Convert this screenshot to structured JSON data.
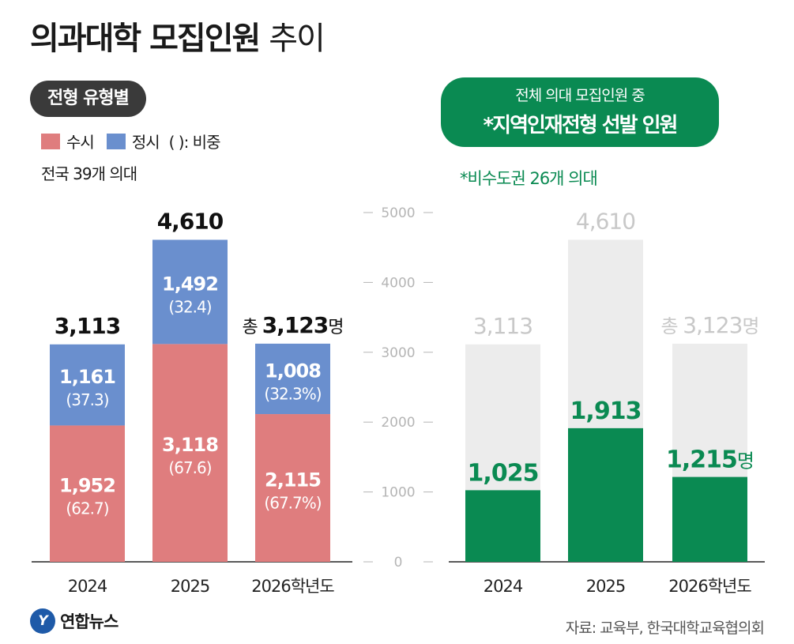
{
  "header": {
    "title_bold": "의과대학 모집인원",
    "title_light": "추이"
  },
  "left": {
    "pill": "전형 유형별",
    "legend": {
      "susi": "수시",
      "jeongsi": "정시",
      "note": "( ): 비중"
    },
    "subtitle": "전국 39개 의대"
  },
  "right": {
    "pill_line1": "전체 의대 모집인원 중",
    "pill_line2": "*지역인재전형 선발 인원",
    "subtitle": "*비수도권 26개 의대"
  },
  "footer": {
    "logo": "연합뉴스",
    "logo_mark": "Y",
    "source": "자료: 교육부, 한국대학교육협의회"
  },
  "colors": {
    "susi": "#df7d7e",
    "jeongsi": "#6a8fce",
    "green": "#0a8a52",
    "gray": "#ececec",
    "axis": "#b5b5b5",
    "grayText": "#c8c8c8"
  },
  "chart_data": [
    {
      "type": "bar",
      "stacked": true,
      "categories": [
        "2024",
        "2025",
        "2026학년도"
      ],
      "series": [
        {
          "name": "수시",
          "values": [
            1952,
            3118,
            2115
          ],
          "share_labels": [
            "(62.7)",
            "(67.6)",
            "(67.7%)"
          ],
          "value_labels": [
            "1,952",
            "3,118",
            "2,115"
          ]
        },
        {
          "name": "정시",
          "values": [
            1161,
            1492,
            1008
          ],
          "share_labels": [
            "(37.3)",
            "(32.4)",
            "(32.3%)"
          ],
          "value_labels": [
            "1,161",
            "1,492",
            "1,008"
          ]
        }
      ],
      "total_labels": [
        {
          "prefix": "",
          "value": "3,113",
          "suffix": ""
        },
        {
          "prefix": "",
          "value": "4,610",
          "suffix": ""
        },
        {
          "prefix": "총 ",
          "value": "3,123",
          "suffix": "명"
        }
      ],
      "ylim": [
        0,
        5000
      ]
    },
    {
      "type": "bar",
      "categories": [
        "2024",
        "2025",
        "2026학년도"
      ],
      "yticks": [
        0,
        1000,
        2000,
        3000,
        4000,
        5000
      ],
      "ylim": [
        0,
        5000
      ],
      "totals": [
        3113,
        4610,
        3123
      ],
      "total_labels": [
        {
          "prefix": "",
          "value": "3,113",
          "suffix": ""
        },
        {
          "prefix": "",
          "value": "4,610",
          "suffix": ""
        },
        {
          "prefix": "총 ",
          "value": "3,123",
          "suffix": "명"
        }
      ],
      "series": [
        {
          "name": "지역인재전형 선발 인원",
          "values": [
            1025,
            1913,
            1215
          ],
          "value_labels": [
            "1,025",
            "1,913",
            "1,215"
          ],
          "suffix_last": "명"
        }
      ]
    }
  ]
}
